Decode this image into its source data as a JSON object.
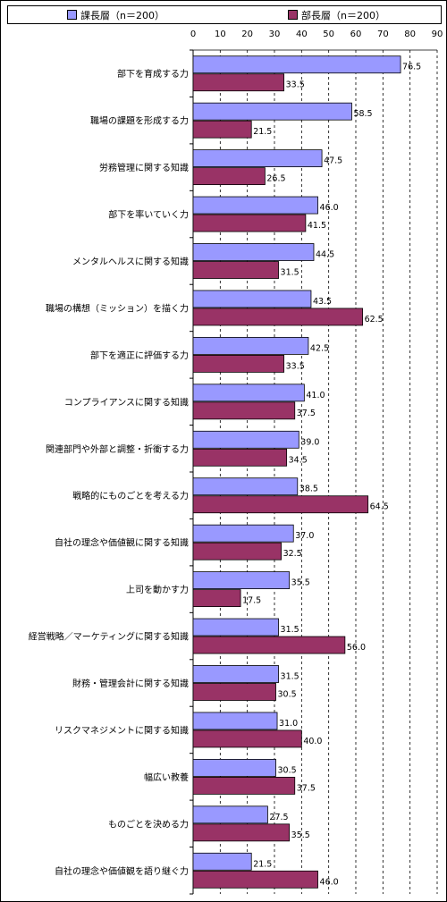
{
  "chart_data": {
    "type": "bar",
    "orientation": "horizontal",
    "title": "",
    "xlabel": "",
    "ylabel": "",
    "xlim": [
      0,
      90
    ],
    "ticks": [
      0,
      10,
      20,
      30,
      40,
      50,
      60,
      70,
      80,
      90
    ],
    "grid": "vertical-dashed",
    "legend_position": "top",
    "categories": [
      "部下を育成する力",
      "職場の課題を形成する力",
      "労務管理に関する知識",
      "部下を率いていく力",
      "メンタルヘルスに関する知識",
      "職場の構想（ミッション）を描く力",
      "部下を適正に評価する力",
      "コンプライアンスに関する知識",
      "関連部門や外部と調整・折衝する力",
      "戦略的にものごとを考える力",
      "自社の理念や価値観に関する知識",
      "上司を動かす力",
      "経営戦略／マーケティングに関する知識",
      "財務・管理会計に関する知識",
      "リスクマネジメントに関する知識",
      "幅広い教養",
      "ものごとを決める力",
      "自社の理念や価値観を語り継ぐ力"
    ],
    "series": [
      {
        "name": "課長層（n＝200）",
        "color": "#9999ff",
        "values": [
          76.5,
          58.5,
          47.5,
          46.0,
          44.5,
          43.5,
          42.5,
          41.0,
          39.0,
          38.5,
          37.0,
          35.5,
          31.5,
          31.5,
          31.0,
          30.5,
          27.5,
          21.5
        ],
        "labels": [
          "76.5",
          "58.5",
          "47.5",
          "46.0",
          "44.5",
          "43.5",
          "42.5",
          "41.0",
          "39.0",
          "38.5",
          "37.0",
          "35.5",
          "31.5",
          "31.5",
          "31.0",
          "30.5",
          "27.5",
          "21.5"
        ]
      },
      {
        "name": "部長層（n＝200）",
        "color": "#993366",
        "values": [
          33.5,
          21.5,
          26.5,
          41.5,
          31.5,
          62.5,
          33.5,
          37.5,
          34.5,
          64.5,
          32.5,
          17.5,
          56.0,
          30.5,
          40.0,
          37.5,
          35.5,
          46.0
        ],
        "labels": [
          "33.5",
          "21.5",
          "26.5",
          "41.5",
          "31.5",
          "62.5",
          "33.5",
          "37.5",
          "34.5",
          "64.5",
          "32.5",
          "17.5",
          "56.0",
          "30.5",
          "40.0",
          "37.5",
          "35.5",
          "46.0"
        ]
      }
    ]
  }
}
